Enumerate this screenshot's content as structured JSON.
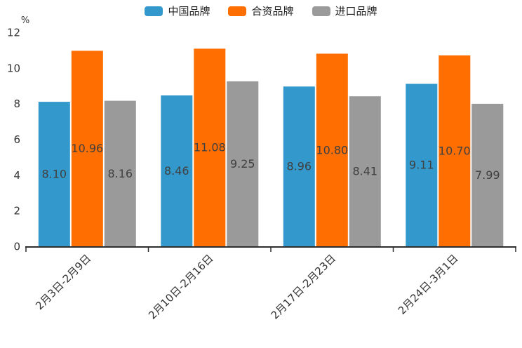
{
  "chart_data": {
    "type": "bar",
    "title": "",
    "xlabel": "",
    "ylabel": "%",
    "ylim": [
      0,
      12
    ],
    "yticks": [
      0,
      2,
      4,
      6,
      8,
      10,
      12
    ],
    "legend_position": "top",
    "x_label_rotation": 45,
    "grid": false,
    "value_label_decimals": 2,
    "categories": [
      "2月3日-2月9日",
      "2月10日-2月16日",
      "2月17日-2月23日",
      "2月24日-3月1日"
    ],
    "series": [
      {
        "name": "中国品牌",
        "color": "#3398cb",
        "values": [
          8.1,
          8.46,
          8.96,
          9.11
        ]
      },
      {
        "name": "合资品牌",
        "color": "#ff6e00",
        "values": [
          10.96,
          11.08,
          10.8,
          10.7
        ]
      },
      {
        "name": "进口品牌",
        "color": "#9a9a9a",
        "values": [
          8.16,
          9.25,
          8.41,
          7.99
        ]
      }
    ],
    "colors": {
      "axis": "#2e2e2e",
      "tick_label": "#333333",
      "value_label": "#404040"
    }
  }
}
